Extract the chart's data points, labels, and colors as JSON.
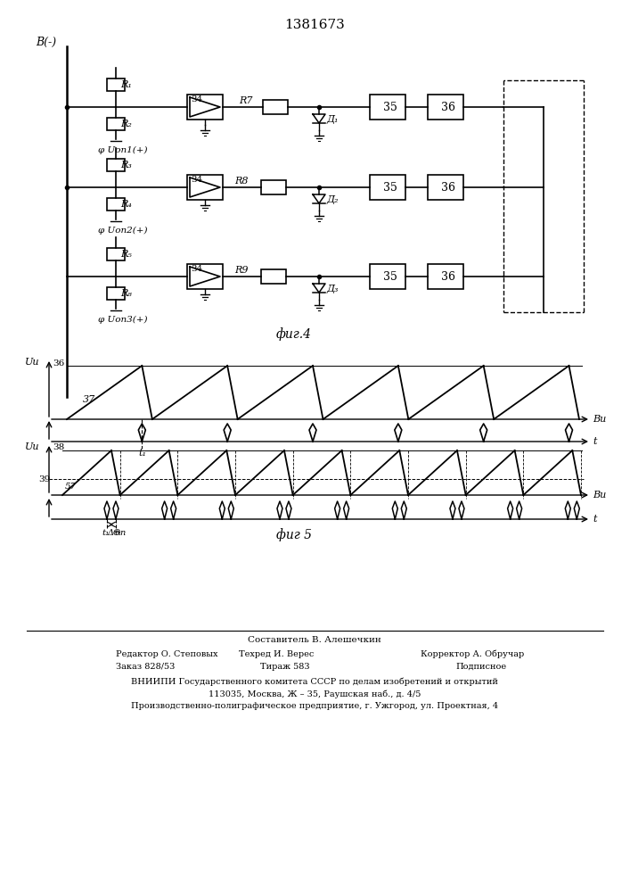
{
  "title": "1381673",
  "fig4_label": "фиг.4",
  "fig5_label": "фиг 5",
  "background_color": "#ffffff",
  "line_color": "#000000",
  "footnote_lines": [
    [
      "Составитель В. Алешечкин",
      353,
      282,
      7.5,
      "center"
    ],
    [
      "Редактор О. Степовых",
      130,
      267,
      7,
      "left"
    ],
    [
      "Техред И. Верес",
      310,
      267,
      7,
      "center"
    ],
    [
      "Корректор А. Обручар",
      530,
      267,
      7,
      "center"
    ],
    [
      "Заказ 828/53",
      130,
      253,
      7,
      "left"
    ],
    [
      "Тираж 583",
      320,
      253,
      7,
      "center"
    ],
    [
      "Подписное",
      540,
      253,
      7,
      "center"
    ],
    [
      "ВНИИПИ Государственного комитета СССР по делам изобретений и открытий",
      353,
      236,
      7,
      "center"
    ],
    [
      "113035, Москва, Ж – 35, Раушская наб., д. 4/5",
      353,
      222,
      7,
      "center"
    ],
    [
      "Производственно-полиграфическое предприятие, г. Ужгород, ул. Проектная, 4",
      353,
      208,
      7,
      "center"
    ]
  ]
}
